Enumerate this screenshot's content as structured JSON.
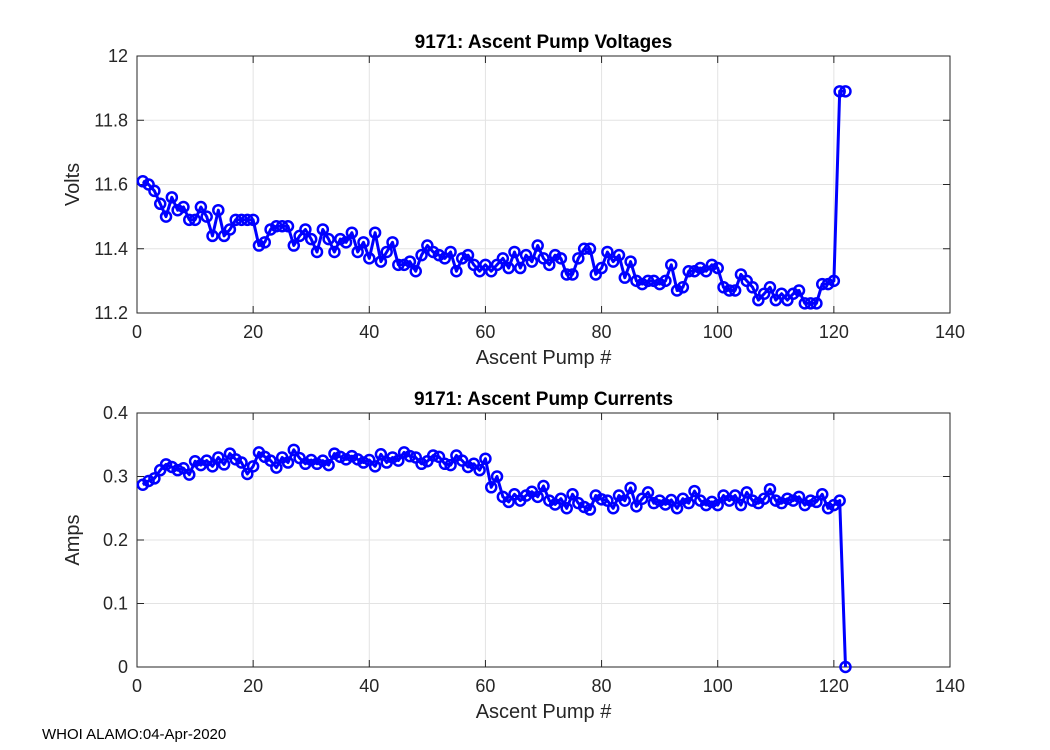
{
  "footer": "WHOI ALAMO:04-Apr-2020",
  "chart_data": [
    {
      "type": "line",
      "title": "9171: Ascent Pump Voltages",
      "xlabel": "Ascent Pump #",
      "ylabel": "Volts",
      "xlim": [
        0,
        140
      ],
      "ylim": [
        11.2,
        12
      ],
      "xticks": [
        0,
        20,
        40,
        60,
        80,
        100,
        120,
        140
      ],
      "yticks": [
        11.2,
        11.4,
        11.6,
        11.8,
        12
      ],
      "ytick_labels": [
        "11.2",
        "11.4",
        "11.6",
        "11.8",
        "12"
      ],
      "grid": true,
      "color": "#0000ff",
      "marker": "circle",
      "series": [
        {
          "x": [
            1,
            2,
            3,
            4,
            5,
            6,
            7,
            8,
            9,
            10,
            11,
            12,
            13,
            14,
            15,
            16,
            17,
            18,
            19,
            20,
            21,
            22,
            23,
            24,
            25,
            26,
            27,
            28,
            29,
            30,
            31,
            32,
            33,
            34,
            35,
            36,
            37,
            38,
            39,
            40,
            41,
            42,
            43,
            44,
            45,
            46,
            47,
            48,
            49,
            50,
            51,
            52,
            53,
            54,
            55,
            56,
            57,
            58,
            59,
            60,
            61,
            62,
            63,
            64,
            65,
            66,
            67,
            68,
            69,
            70,
            71,
            72,
            73,
            74,
            75,
            76,
            77,
            78,
            79,
            80,
            81,
            82,
            83,
            84,
            85,
            86,
            87,
            88,
            89,
            90,
            91,
            92,
            93,
            94,
            95,
            96,
            97,
            98,
            99,
            100,
            101,
            102,
            103,
            104,
            105,
            106,
            107,
            108,
            109,
            110,
            111,
            112,
            113,
            114,
            115,
            116,
            117,
            118,
            119,
            120,
            121,
            122
          ],
          "values": [
            11.61,
            11.6,
            11.58,
            11.54,
            11.5,
            11.56,
            11.52,
            11.53,
            11.49,
            11.49,
            11.53,
            11.5,
            11.44,
            11.52,
            11.44,
            11.46,
            11.49,
            11.49,
            11.49,
            11.49,
            11.41,
            11.42,
            11.46,
            11.47,
            11.47,
            11.47,
            11.41,
            11.44,
            11.46,
            11.43,
            11.39,
            11.46,
            11.43,
            11.39,
            11.43,
            11.42,
            11.45,
            11.39,
            11.42,
            11.37,
            11.45,
            11.36,
            11.39,
            11.42,
            11.35,
            11.35,
            11.36,
            11.33,
            11.38,
            11.41,
            11.39,
            11.38,
            11.37,
            11.39,
            11.33,
            11.37,
            11.38,
            11.35,
            11.33,
            11.35,
            11.33,
            11.35,
            11.37,
            11.34,
            11.39,
            11.34,
            11.38,
            11.36,
            11.41,
            11.37,
            11.35,
            11.38,
            11.37,
            11.32,
            11.32,
            11.37,
            11.4,
            11.4,
            11.32,
            11.34,
            11.39,
            11.36,
            11.38,
            11.31,
            11.36,
            11.3,
            11.29,
            11.3,
            11.3,
            11.29,
            11.3,
            11.35,
            11.27,
            11.28,
            11.33,
            11.33,
            11.34,
            11.33,
            11.35,
            11.34,
            11.28,
            11.27,
            11.27,
            11.32,
            11.3,
            11.28,
            11.24,
            11.26,
            11.28,
            11.24,
            11.26,
            11.24,
            11.26,
            11.27,
            11.23,
            11.23,
            11.23,
            11.29,
            11.29,
            11.3,
            11.89,
            11.89
          ]
        }
      ]
    },
    {
      "type": "line",
      "title": "9171: Ascent Pump Currents",
      "xlabel": "Ascent Pump #",
      "ylabel": "Amps",
      "xlim": [
        0,
        140
      ],
      "ylim": [
        0,
        0.4
      ],
      "xticks": [
        0,
        20,
        40,
        60,
        80,
        100,
        120,
        140
      ],
      "yticks": [
        0,
        0.1,
        0.2,
        0.3,
        0.4
      ],
      "ytick_labels": [
        "0",
        "0.1",
        "0.2",
        "0.3",
        "0.4"
      ],
      "grid": true,
      "color": "#0000ff",
      "marker": "circle",
      "series": [
        {
          "x": [
            1,
            2,
            3,
            4,
            5,
            6,
            7,
            8,
            9,
            10,
            11,
            12,
            13,
            14,
            15,
            16,
            17,
            18,
            19,
            20,
            21,
            22,
            23,
            24,
            25,
            26,
            27,
            28,
            29,
            30,
            31,
            32,
            33,
            34,
            35,
            36,
            37,
            38,
            39,
            40,
            41,
            42,
            43,
            44,
            45,
            46,
            47,
            48,
            49,
            50,
            51,
            52,
            53,
            54,
            55,
            56,
            57,
            58,
            59,
            60,
            61,
            62,
            63,
            64,
            65,
            66,
            67,
            68,
            69,
            70,
            71,
            72,
            73,
            74,
            75,
            76,
            77,
            78,
            79,
            80,
            81,
            82,
            83,
            84,
            85,
            86,
            87,
            88,
            89,
            90,
            91,
            92,
            93,
            94,
            95,
            96,
            97,
            98,
            99,
            100,
            101,
            102,
            103,
            104,
            105,
            106,
            107,
            108,
            109,
            110,
            111,
            112,
            113,
            114,
            115,
            116,
            117,
            118,
            119,
            120,
            121,
            122
          ],
          "values": [
            0.287,
            0.293,
            0.297,
            0.31,
            0.319,
            0.315,
            0.31,
            0.313,
            0.303,
            0.324,
            0.318,
            0.325,
            0.316,
            0.33,
            0.319,
            0.336,
            0.327,
            0.322,
            0.304,
            0.316,
            0.338,
            0.331,
            0.325,
            0.314,
            0.33,
            0.322,
            0.342,
            0.329,
            0.32,
            0.326,
            0.32,
            0.325,
            0.318,
            0.336,
            0.331,
            0.327,
            0.332,
            0.327,
            0.322,
            0.326,
            0.316,
            0.335,
            0.322,
            0.33,
            0.325,
            0.338,
            0.332,
            0.33,
            0.32,
            0.324,
            0.333,
            0.331,
            0.32,
            0.318,
            0.333,
            0.325,
            0.315,
            0.32,
            0.31,
            0.328,
            0.283,
            0.3,
            0.268,
            0.26,
            0.272,
            0.262,
            0.27,
            0.276,
            0.268,
            0.285,
            0.262,
            0.256,
            0.265,
            0.25,
            0.272,
            0.258,
            0.252,
            0.248,
            0.27,
            0.264,
            0.262,
            0.25,
            0.27,
            0.262,
            0.282,
            0.253,
            0.265,
            0.275,
            0.258,
            0.262,
            0.256,
            0.263,
            0.25,
            0.265,
            0.258,
            0.277,
            0.262,
            0.255,
            0.26,
            0.255,
            0.27,
            0.262,
            0.27,
            0.255,
            0.275,
            0.262,
            0.258,
            0.265,
            0.28,
            0.262,
            0.258,
            0.265,
            0.262,
            0.268,
            0.255,
            0.262,
            0.26,
            0.272,
            0.25,
            0.255,
            0.262,
            0.0
          ]
        }
      ]
    }
  ]
}
